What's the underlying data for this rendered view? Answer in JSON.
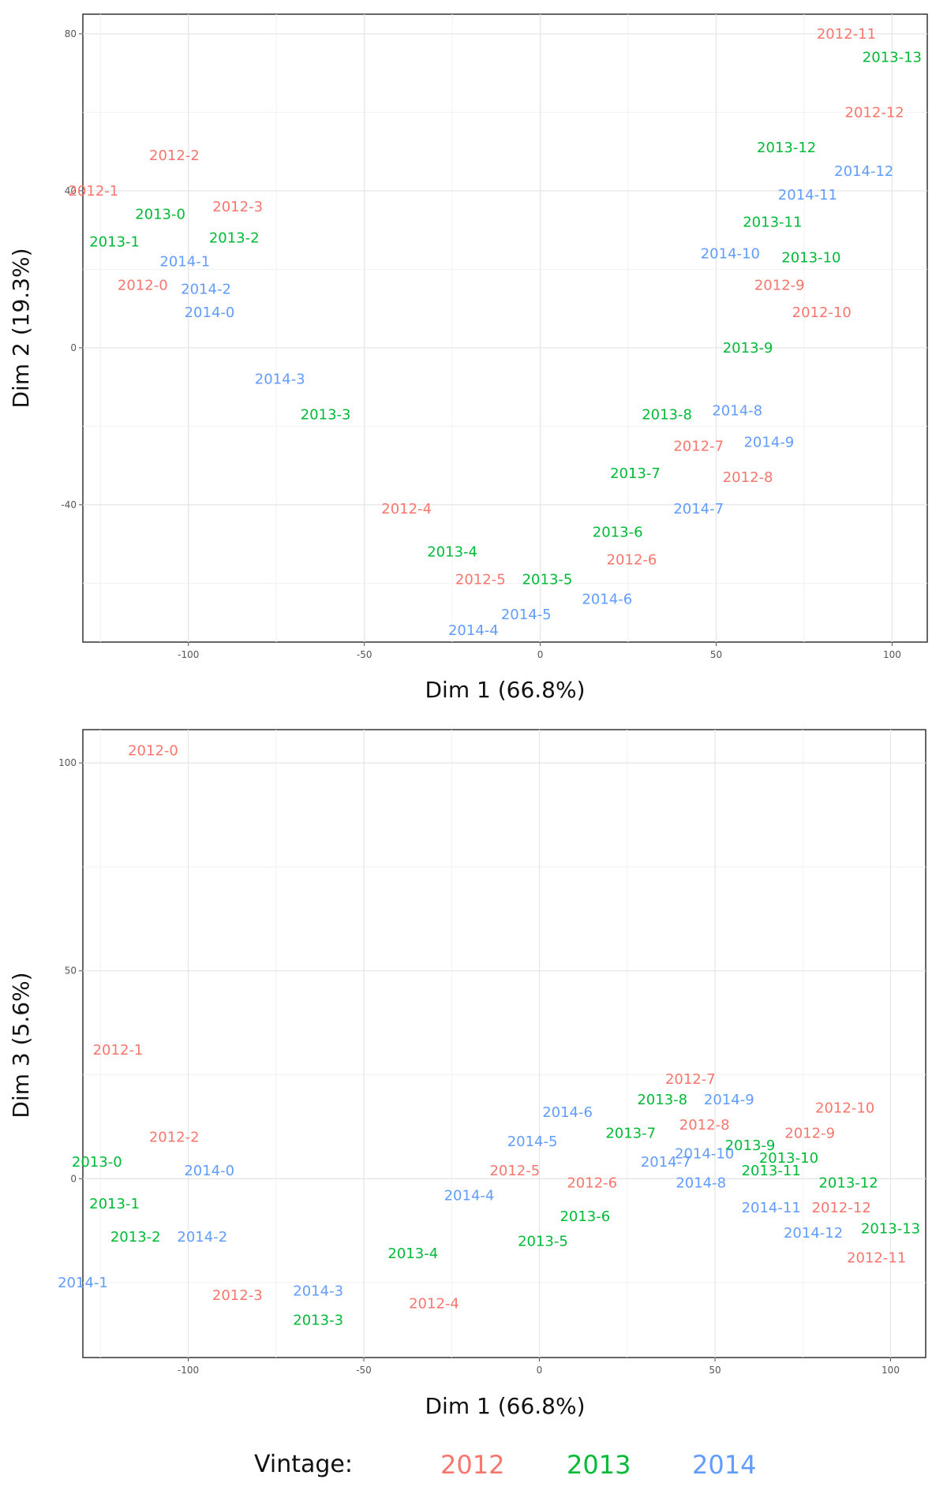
{
  "chart_data": [
    {
      "type": "scatter",
      "xlabel": "Dim 1 (66.8%)",
      "ylabel": "Dim 2 (19.3%)",
      "xlim": [
        -130,
        110
      ],
      "ylim": [
        -75,
        85
      ],
      "xticks": [
        -100,
        -50,
        0,
        50,
        100
      ],
      "yticks": [
        -40,
        0,
        40,
        80
      ],
      "grid": true,
      "series": [
        {
          "name": "2012",
          "points": [
            {
              "label": "2012-0",
              "x": -113,
              "y": 16
            },
            {
              "label": "2012-1",
              "x": -127,
              "y": 40
            },
            {
              "label": "2012-2",
              "x": -104,
              "y": 49
            },
            {
              "label": "2012-3",
              "x": -86,
              "y": 36
            },
            {
              "label": "2012-4",
              "x": -38,
              "y": -41
            },
            {
              "label": "2012-5",
              "x": -17,
              "y": -59
            },
            {
              "label": "2012-6",
              "x": 26,
              "y": -54
            },
            {
              "label": "2012-7",
              "x": 45,
              "y": -25
            },
            {
              "label": "2012-8",
              "x": 59,
              "y": -33
            },
            {
              "label": "2012-9",
              "x": 68,
              "y": 16
            },
            {
              "label": "2012-10",
              "x": 80,
              "y": 9
            },
            {
              "label": "2012-11",
              "x": 87,
              "y": 80
            },
            {
              "label": "2012-12",
              "x": 95,
              "y": 60
            }
          ]
        },
        {
          "name": "2013",
          "points": [
            {
              "label": "2013-0",
              "x": -108,
              "y": 34
            },
            {
              "label": "2013-1",
              "x": -121,
              "y": 27
            },
            {
              "label": "2013-2",
              "x": -87,
              "y": 28
            },
            {
              "label": "2013-3",
              "x": -61,
              "y": -17
            },
            {
              "label": "2013-4",
              "x": -25,
              "y": -52
            },
            {
              "label": "2013-5",
              "x": 2,
              "y": -59
            },
            {
              "label": "2013-6",
              "x": 22,
              "y": -47
            },
            {
              "label": "2013-7",
              "x": 27,
              "y": -32
            },
            {
              "label": "2013-8",
              "x": 36,
              "y": -17
            },
            {
              "label": "2013-9",
              "x": 59,
              "y": 0
            },
            {
              "label": "2013-10",
              "x": 77,
              "y": 23
            },
            {
              "label": "2013-11",
              "x": 66,
              "y": 32
            },
            {
              "label": "2013-12",
              "x": 70,
              "y": 51
            },
            {
              "label": "2013-13",
              "x": 100,
              "y": 74
            }
          ]
        },
        {
          "name": "2014",
          "points": [
            {
              "label": "2014-0",
              "x": -94,
              "y": 9
            },
            {
              "label": "2014-1",
              "x": -101,
              "y": 22
            },
            {
              "label": "2014-2",
              "x": -95,
              "y": 15
            },
            {
              "label": "2014-3",
              "x": -74,
              "y": -8
            },
            {
              "label": "2014-4",
              "x": -19,
              "y": -72
            },
            {
              "label": "2014-5",
              "x": -4,
              "y": -68
            },
            {
              "label": "2014-6",
              "x": 19,
              "y": -64
            },
            {
              "label": "2014-7",
              "x": 45,
              "y": -41
            },
            {
              "label": "2014-8",
              "x": 56,
              "y": -16
            },
            {
              "label": "2014-9",
              "x": 65,
              "y": -24
            },
            {
              "label": "2014-10",
              "x": 54,
              "y": 24
            },
            {
              "label": "2014-11",
              "x": 76,
              "y": 39
            },
            {
              "label": "2014-12",
              "x": 92,
              "y": 45
            }
          ]
        }
      ]
    },
    {
      "type": "scatter",
      "xlabel": "Dim 1 (66.8%)",
      "ylabel": "Dim 3 (5.6%)",
      "xlim": [
        -130,
        110
      ],
      "ylim": [
        -43,
        108
      ],
      "xticks": [
        -100,
        -50,
        0,
        50,
        100
      ],
      "yticks": [
        0,
        50,
        100
      ],
      "grid": true,
      "series": [
        {
          "name": "2012",
          "points": [
            {
              "label": "2012-0",
              "x": -110,
              "y": 103
            },
            {
              "label": "2012-1",
              "x": -120,
              "y": 31
            },
            {
              "label": "2012-2",
              "x": -104,
              "y": 10
            },
            {
              "label": "2012-3",
              "x": -86,
              "y": -28
            },
            {
              "label": "2012-4",
              "x": -30,
              "y": -30
            },
            {
              "label": "2012-5",
              "x": -7,
              "y": 2
            },
            {
              "label": "2012-6",
              "x": 15,
              "y": -1
            },
            {
              "label": "2012-7",
              "x": 43,
              "y": 24
            },
            {
              "label": "2012-8",
              "x": 47,
              "y": 13
            },
            {
              "label": "2012-9",
              "x": 77,
              "y": 11
            },
            {
              "label": "2012-10",
              "x": 87,
              "y": 17
            },
            {
              "label": "2012-11",
              "x": 96,
              "y": -19
            },
            {
              "label": "2012-12",
              "x": 86,
              "y": -7
            }
          ]
        },
        {
          "name": "2013",
          "points": [
            {
              "label": "2013-0",
              "x": -126,
              "y": 4
            },
            {
              "label": "2013-1",
              "x": -121,
              "y": -6
            },
            {
              "label": "2013-2",
              "x": -115,
              "y": -14
            },
            {
              "label": "2013-3",
              "x": -63,
              "y": -34
            },
            {
              "label": "2013-4",
              "x": -36,
              "y": -18
            },
            {
              "label": "2013-5",
              "x": 1,
              "y": -15
            },
            {
              "label": "2013-6",
              "x": 13,
              "y": -9
            },
            {
              "label": "2013-7",
              "x": 26,
              "y": 11
            },
            {
              "label": "2013-8",
              "x": 35,
              "y": 19
            },
            {
              "label": "2013-9",
              "x": 60,
              "y": 8
            },
            {
              "label": "2013-10",
              "x": 71,
              "y": 5
            },
            {
              "label": "2013-11",
              "x": 66,
              "y": 2
            },
            {
              "label": "2013-12",
              "x": 88,
              "y": -1
            },
            {
              "label": "2013-13",
              "x": 100,
              "y": -12
            }
          ]
        },
        {
          "name": "2014",
          "points": [
            {
              "label": "2014-0",
              "x": -94,
              "y": 2
            },
            {
              "label": "2014-1",
              "x": -130,
              "y": -25
            },
            {
              "label": "2014-2",
              "x": -96,
              "y": -14
            },
            {
              "label": "2014-3",
              "x": -63,
              "y": -27
            },
            {
              "label": "2014-4",
              "x": -20,
              "y": -4
            },
            {
              "label": "2014-5",
              "x": -2,
              "y": 9
            },
            {
              "label": "2014-6",
              "x": 8,
              "y": 16
            },
            {
              "label": "2014-7",
              "x": 36,
              "y": 4
            },
            {
              "label": "2014-8",
              "x": 46,
              "y": -1
            },
            {
              "label": "2014-9",
              "x": 54,
              "y": 19
            },
            {
              "label": "2014-10",
              "x": 47,
              "y": 6
            },
            {
              "label": "2014-11",
              "x": 66,
              "y": -7
            },
            {
              "label": "2014-12",
              "x": 78,
              "y": -13
            }
          ]
        }
      ]
    }
  ],
  "legend": {
    "title": "Vintage:",
    "items": [
      {
        "label": "2012",
        "color": "#F8766D"
      },
      {
        "label": "2013",
        "color": "#00BA38"
      },
      {
        "label": "2014",
        "color": "#619CFF"
      }
    ]
  },
  "colors": {
    "2012": "#F8766D",
    "2013": "#00BA38",
    "2014": "#619CFF",
    "grid": "#EBEBEB",
    "panel_border": "#333333"
  }
}
